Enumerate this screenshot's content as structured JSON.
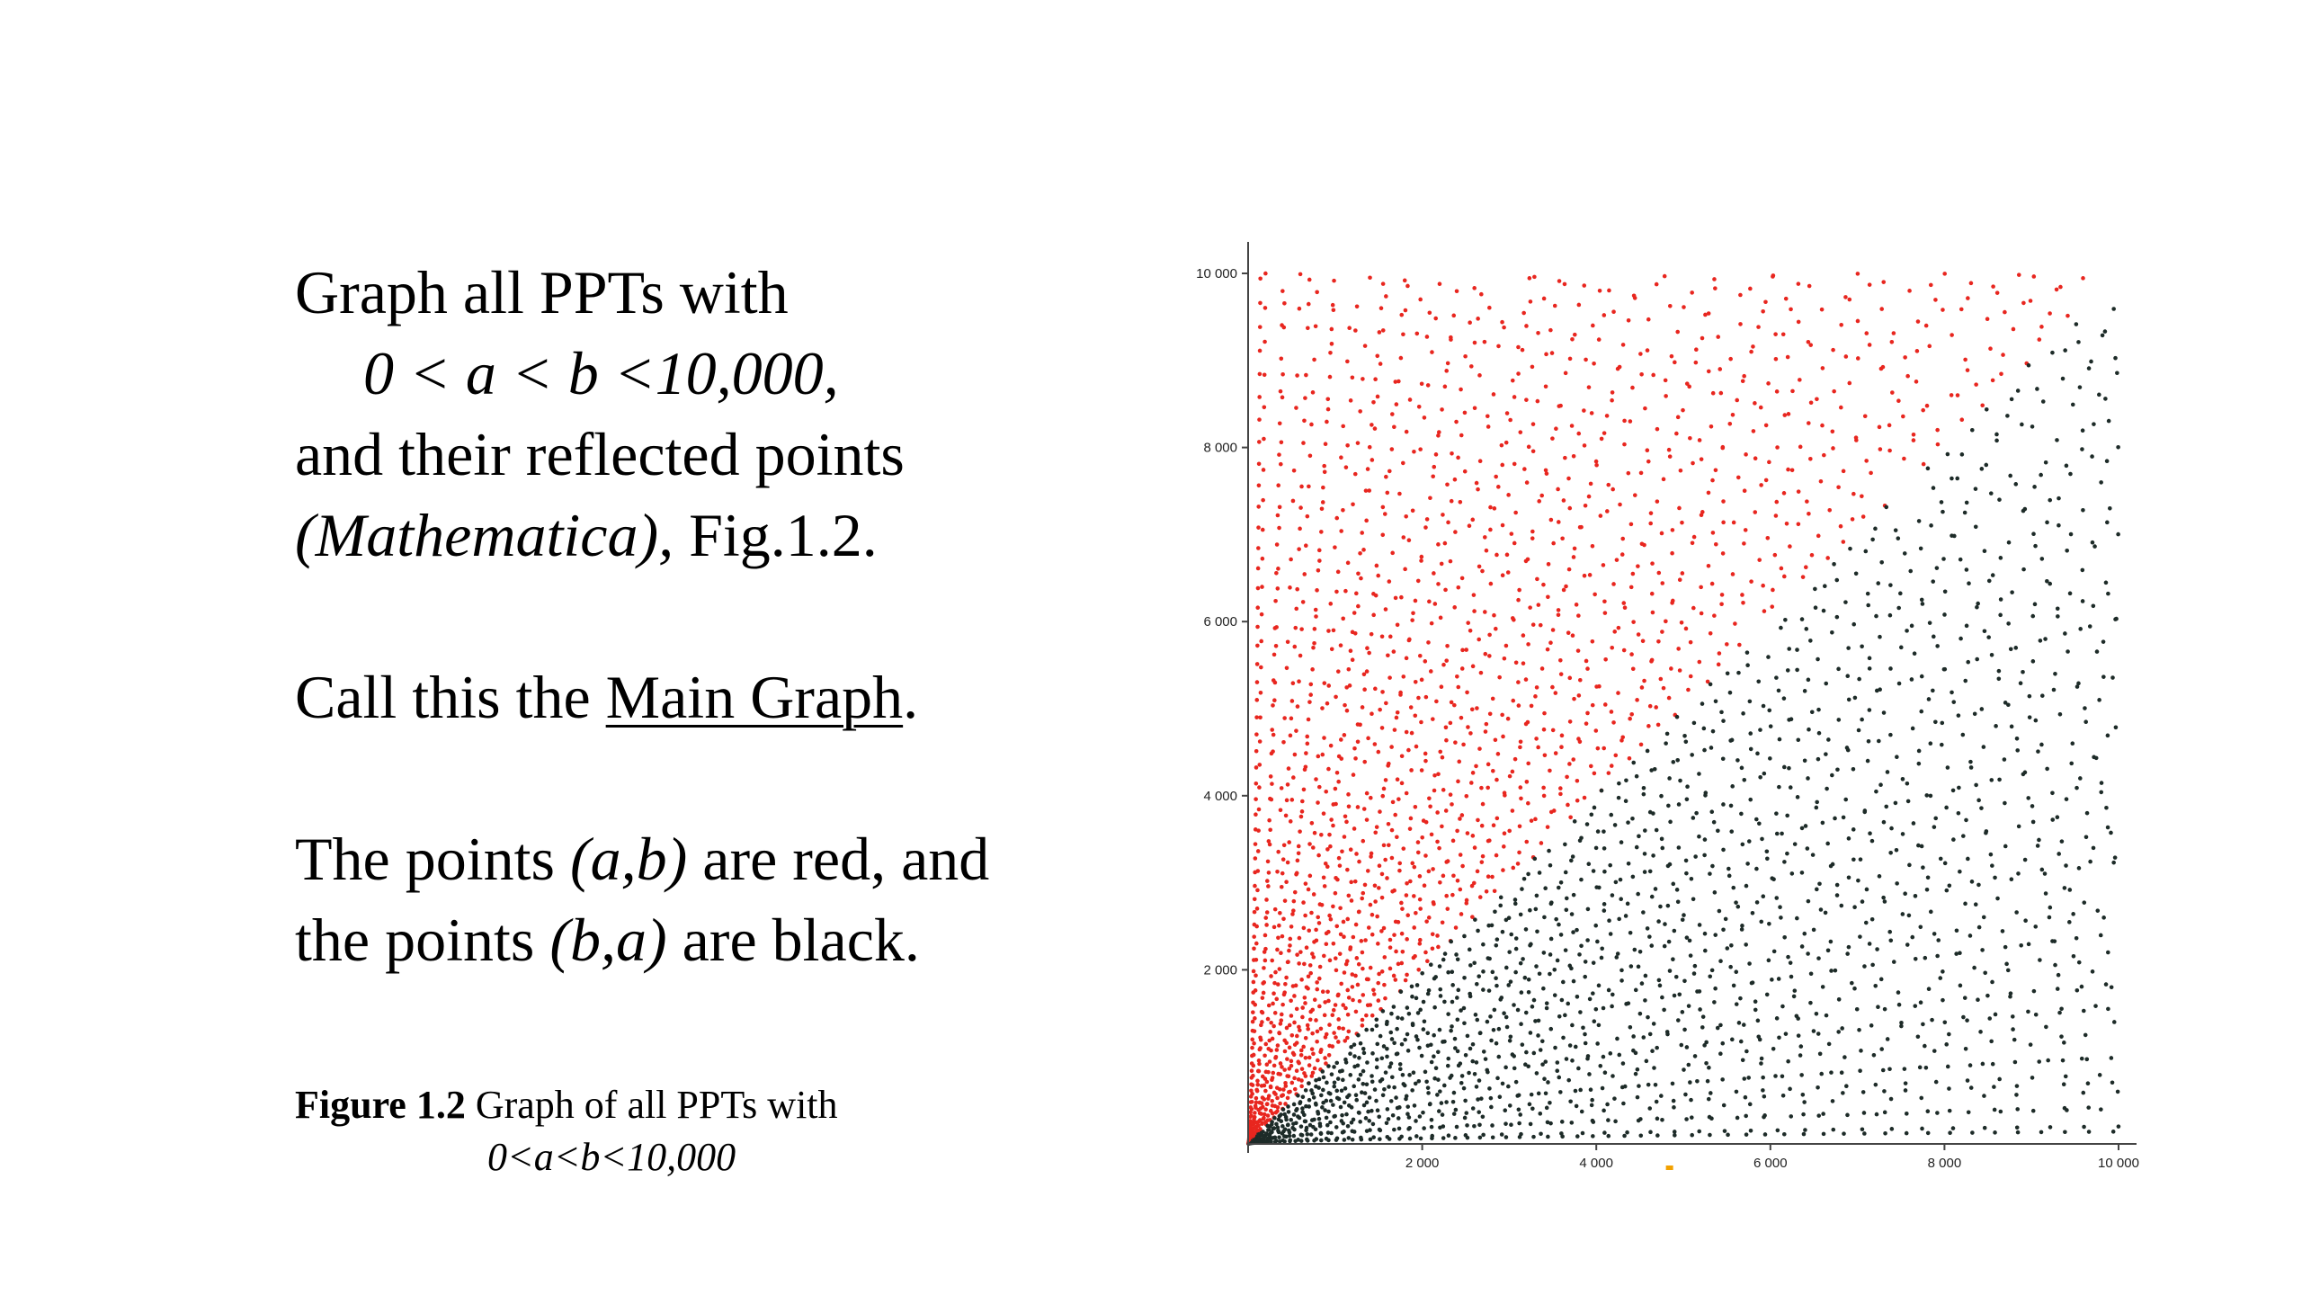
{
  "text": {
    "line1": "Graph all PPTs with",
    "line2": "0 < a < b <10,000,",
    "line3": "and their reflected points",
    "line4_italic": "(Mathematica),",
    "line4_rest": " Fig.1.2.",
    "call_prefix": "Call this the ",
    "call_underlined": "Main Graph",
    "call_suffix": ".",
    "points_prefix": "The points ",
    "points_ab": "(a,b)",
    "points_mid": " are red, and",
    "points2_prefix": "the points ",
    "points_ba": "(b,a)",
    "points2_suffix": " are black."
  },
  "caption": {
    "bold": "Figure 1.2",
    "rest": " Graph of all PPTs with",
    "line2": "0<a<b<10,000"
  },
  "chart_data": {
    "type": "scatter",
    "title": "",
    "xlabel": "",
    "ylabel": "",
    "xlim": [
      0,
      10000
    ],
    "ylim": [
      0,
      10000
    ],
    "x_ticks": [
      "2 000",
      "4 000",
      "6 000",
      "8 000",
      "10 000"
    ],
    "y_ticks": [
      "2 000",
      "4 000",
      "6 000",
      "8 000",
      "10 000"
    ],
    "grid": false,
    "series": [
      {
        "points": "(a,b), 0<a<b<10000",
        "color": "#e8261f"
      },
      {
        "points": "(b,a)",
        "color": "#1d2b28"
      }
    ],
    "colors": {
      "red": "#e8261f",
      "black": "#1d2b28",
      "axis": "#444444",
      "marker": "#f2a100"
    }
  }
}
